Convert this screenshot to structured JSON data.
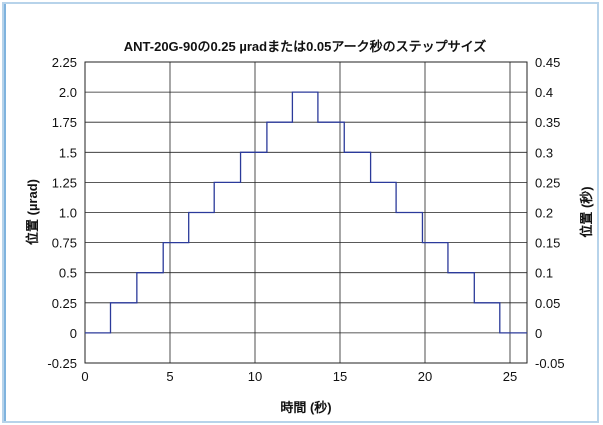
{
  "chart_data": {
    "type": "line",
    "title": "ANT-20G-90の0.25 µradまたは0.05アーク秒のステップサイズ",
    "xlabel": "時間 (秒)",
    "ylabel": "位置 (µrad)",
    "ylabel_right": "位置 (秒)",
    "xlim": [
      0,
      26
    ],
    "ylim": [
      -0.25,
      2.25
    ],
    "ylim_right": [
      -0.05,
      0.45
    ],
    "grid": true,
    "x_ticks": [
      "0",
      "5",
      "10",
      "15",
      "20",
      "25"
    ],
    "y_ticks": [
      "2.25",
      "2.0",
      "1.75",
      "1.5",
      "1.25",
      "1.0",
      "0.75",
      "0.5",
      "0.25",
      "0",
      "-0.25"
    ],
    "y_ticks_right": [
      "0.45",
      "0.4",
      "0.35",
      "0.3",
      "0.25",
      "0.2",
      "0.15",
      "0.1",
      "0.05",
      "0",
      "-0.05"
    ],
    "line_color": "#2b3a9a",
    "series": [
      {
        "x": [
          0,
          1.5,
          1.5,
          3.05,
          3.05,
          4.6,
          4.6,
          6.1,
          6.1,
          7.6,
          7.6,
          9.15,
          9.15,
          10.7,
          10.7,
          12.2,
          12.2,
          13.7,
          13.7,
          15.25,
          15.25,
          16.8,
          16.8,
          18.3,
          18.3,
          19.85,
          19.85,
          21.35,
          21.35,
          22.9,
          22.9,
          24.4,
          24.4,
          26
        ],
        "y": [
          0,
          0,
          0.25,
          0.25,
          0.5,
          0.5,
          0.75,
          0.75,
          1.0,
          1.0,
          1.25,
          1.25,
          1.5,
          1.5,
          1.75,
          1.75,
          2.0,
          2.0,
          1.75,
          1.75,
          1.5,
          1.5,
          1.25,
          1.25,
          1.0,
          1.0,
          0.75,
          0.75,
          0.5,
          0.5,
          0.25,
          0.25,
          0,
          0
        ]
      }
    ]
  }
}
